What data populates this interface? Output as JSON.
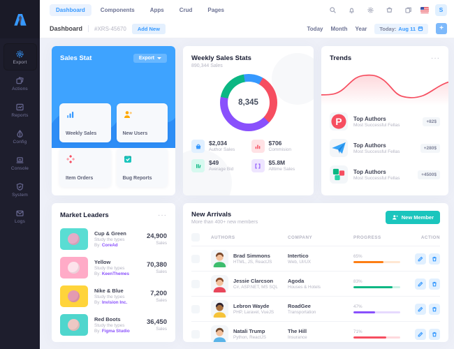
{
  "colors": {
    "primary": "#3699ff",
    "success": "#1bc5bd",
    "danger": "#f64e60",
    "warning": "#ffa800",
    "purple": "#8950fc"
  },
  "header": {
    "tabs": [
      {
        "label": "Dashboard",
        "active": true
      },
      {
        "label": "Components",
        "active": false
      },
      {
        "label": "Apps",
        "active": false
      },
      {
        "label": "Crud",
        "active": false
      },
      {
        "label": "Pages",
        "active": false
      }
    ],
    "avatar_initial": "S"
  },
  "subheader": {
    "title": "Dashboard",
    "ticket": "#XRS-45670",
    "add_new_label": "Add New",
    "ranges": [
      {
        "label": "Today"
      },
      {
        "label": "Month"
      },
      {
        "label": "Year"
      }
    ],
    "date_prefix": "Today:",
    "date_value": "Aug 11",
    "plus_label": "+"
  },
  "sidebar": {
    "items": [
      {
        "label": "Export",
        "icon": "gear",
        "active": true
      },
      {
        "label": "Actions",
        "icon": "layers",
        "active": false
      },
      {
        "label": "Reports",
        "icon": "chart-image",
        "active": false
      },
      {
        "label": "Config",
        "icon": "drop",
        "active": false
      },
      {
        "label": "Console",
        "icon": "laptop",
        "active": false
      },
      {
        "label": "System",
        "icon": "shield",
        "active": false
      },
      {
        "label": "Logs",
        "icon": "mail",
        "active": false
      }
    ]
  },
  "sales_stat": {
    "title": "Sales Stat",
    "export_label": "Export",
    "tiles": [
      {
        "label": "Weekly Sales",
        "icon": "bar-chart",
        "color": "#3699ff"
      },
      {
        "label": "New Users",
        "icon": "user-plus",
        "color": "#ffa800"
      },
      {
        "label": "Item Orders",
        "icon": "plus-diamonds",
        "color": "#f64e60"
      },
      {
        "label": "Bug Reports",
        "icon": "checked-box",
        "color": "#1bc5bd"
      }
    ]
  },
  "weekly": {
    "title": "Weekly Sales Stats",
    "subtitle": "890,344 Sales",
    "center": "8,345",
    "stats": [
      {
        "value": "$2,034",
        "label": "Author Sales",
        "color": "#3699ff",
        "tint": "#e1f0ff",
        "icon": "basket"
      },
      {
        "value": "$706",
        "label": "Commision",
        "color": "#f64e60",
        "tint": "#ffe2e5",
        "icon": "chart-bars"
      },
      {
        "value": "$49",
        "label": "Average Bid",
        "color": "#0bb783",
        "tint": "#d7f9ef",
        "icon": "lines"
      },
      {
        "value": "$5.8M",
        "label": "Alltime Sales",
        "color": "#8950fc",
        "tint": "#eee5ff",
        "icon": "brackets"
      }
    ]
  },
  "trends": {
    "title": "Trends",
    "menu": "···",
    "items": [
      {
        "title": "Top Authors",
        "subtitle": "Most Successful Fellas",
        "badge": "+82$",
        "icon": "p-logo"
      },
      {
        "title": "Top Authors",
        "subtitle": "Most Successful Fellas",
        "badge": "+280$",
        "icon": "paper-plane"
      },
      {
        "title": "Top Authors",
        "subtitle": "Most Successful Fellas",
        "badge": "+4500$",
        "icon": "puzzle"
      }
    ]
  },
  "market": {
    "title": "Market Leaders",
    "menu": "···",
    "by_label": "By:",
    "sales_label": "Sales",
    "items": [
      {
        "name": "Cup & Green",
        "desc": "Study the types",
        "brand": "CoreAd",
        "sales": "24,900",
        "thumb": "#59ddd3",
        "thumb2": "#f6a7c6"
      },
      {
        "name": "Yellow",
        "desc": "Study the types",
        "brand": "KeenThemes",
        "sales": "70,380",
        "thumb": "#ffabc7",
        "thumb2": "#fde9ef"
      },
      {
        "name": "Nike & Blue",
        "desc": "Study the types",
        "brand": "Invision Inc.",
        "sales": "7,200",
        "thumb": "#ffd43b",
        "thumb2": "#e294bd"
      },
      {
        "name": "Red Boots",
        "desc": "Study the types",
        "brand": "Figma Studio",
        "sales": "36,450",
        "thumb": "#4fd6cd",
        "thumb2": "#ffc7c4"
      }
    ]
  },
  "arrivals": {
    "title": "New Arrivals",
    "subtitle": "More than 400+ new members",
    "button_label": "New Member",
    "columns": [
      "Authors",
      "Company",
      "Progress",
      "Action"
    ],
    "rows": [
      {
        "name": "Brad Simmons",
        "skills": "HTML, JS, ReactJS",
        "company": "Intertico",
        "industry": "Web, UI/UX",
        "pct_label": "65%",
        "pct": 65,
        "bar": "#fd7e14",
        "track": "#ffe7d2",
        "avatar": {
          "skin": "#f3c19d",
          "hair": "#7b4a2d",
          "shirt": "#3dbd6e"
        }
      },
      {
        "name": "Jessie Clarcson",
        "skills": "C#, ASP.NET, MS SQL",
        "company": "Agoda",
        "industry": "Houses & Hotels",
        "pct_label": "83%",
        "pct": 83,
        "bar": "#0bb783",
        "track": "#cdf2e6",
        "avatar": {
          "skin": "#f3c19d",
          "hair": "#8a4b2a",
          "shirt": "#e8465a"
        }
      },
      {
        "name": "Lebron Wayde",
        "skills": "PHP, Laravel, VueJS",
        "company": "RoadGee",
        "industry": "Transportation",
        "pct_label": "47%",
        "pct": 47,
        "bar": "#8950fc",
        "track": "#e6d9fe",
        "avatar": {
          "skin": "#a9703f",
          "hair": "#2f2330",
          "shirt": "#f5c33b"
        }
      },
      {
        "name": "Natali Trump",
        "skills": "Python, ReactJS",
        "company": "The Hill",
        "industry": "Insurance",
        "pct_label": "71%",
        "pct": 71,
        "bar": "#f64e60",
        "track": "#fed9dd",
        "avatar": {
          "skin": "#f3c19d",
          "hair": "#6e4a2f",
          "shirt": "#59b3e8"
        }
      }
    ]
  },
  "chart_data": [
    {
      "type": "pie",
      "title": "Weekly Sales Stats donut",
      "center_label": "8,345",
      "segments": [
        {
          "label": "segment-blue",
          "value": 11,
          "color": "#3699ff"
        },
        {
          "label": "segment-red",
          "value": 29,
          "color": "#f64e60"
        },
        {
          "label": "segment-purple",
          "value": 41,
          "color": "#8950fc"
        },
        {
          "label": "segment-green",
          "value": 19,
          "color": "#0bb783"
        }
      ],
      "legend_position": "none"
    },
    {
      "type": "area",
      "title": "Trends",
      "x": [
        0,
        1,
        2,
        3,
        4,
        5,
        6,
        7,
        8,
        9,
        10
      ],
      "values": [
        22,
        22,
        32,
        62,
        68,
        66,
        42,
        18,
        16,
        20,
        46
      ],
      "color": "#f64e60",
      "grid": false,
      "legend_position": "none"
    }
  ]
}
